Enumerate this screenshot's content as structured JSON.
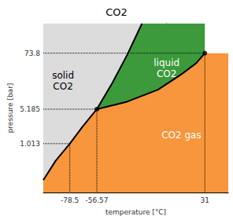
{
  "chart_data": {
    "type": "line",
    "title": "CO2",
    "xlabel": "temperature [°C]",
    "ylabel": "pressure [bar]",
    "xlim": [
      -100,
      50
    ],
    "ylim": [
      0.1,
      300
    ],
    "log": "y",
    "grid": false,
    "xticks": [
      -78.5,
      -56.57,
      31
    ],
    "yticks": [
      1.013,
      5.185,
      73.8
    ],
    "series": [
      {
        "color": "#000000",
        "x": [
          -100,
          -90,
          -78.5,
          -68,
          -56.57
        ],
        "values": [
          0.18,
          0.45,
          1.013,
          2.3,
          5.185
        ]
      },
      {
        "color": "#000000",
        "x": [
          -56.57,
          -44,
          -32,
          -20
        ],
        "values": [
          5.185,
          18,
          68,
          300
        ]
      },
      {
        "color": "#000000",
        "x": [
          -56.57,
          -32,
          -7,
          11,
          24,
          31
        ],
        "values": [
          5.185,
          7.4,
          13.1,
          26,
          46,
          73.8
        ]
      }
    ],
    "regions": [
      {
        "text": "solid\nCO2",
        "color": "#dcdcdc",
        "x": -84,
        "y": 20
      },
      {
        "text": "liquid\nCO2",
        "color": "#3c9a3c",
        "x": 0,
        "y": 36
      },
      {
        "text": "CO2 gas",
        "color": "#f7963c",
        "x": 12,
        "y": 1.5
      }
    ],
    "points": [
      {
        "x": -78.5,
        "y": 1.013,
        "marker": "none"
      },
      {
        "x": -56.57,
        "y": 5.185,
        "marker": "circle"
      },
      {
        "x": 31,
        "y": 73.8,
        "marker": "circle"
      }
    ]
  }
}
